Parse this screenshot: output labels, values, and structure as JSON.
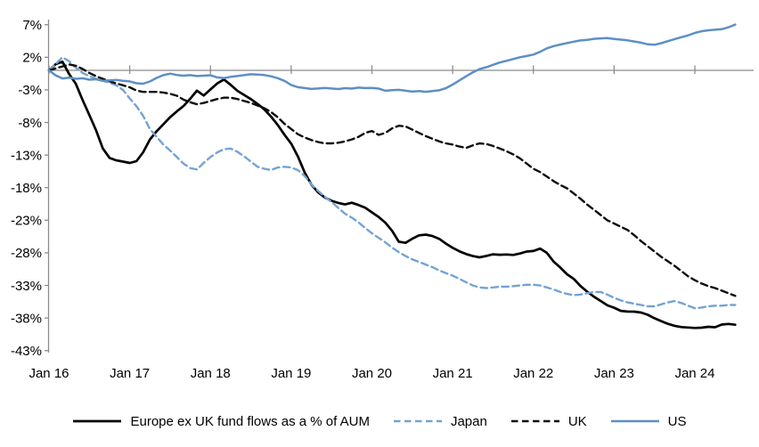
{
  "chart_data": {
    "type": "line",
    "title": "",
    "xlabel": "",
    "ylabel": "",
    "x_unit": "months since Jan 2016, monthly samples",
    "ylim": [
      -43,
      7
    ],
    "grid": false,
    "zero_axis_line": true,
    "legend_position": "bottom",
    "y_ticks": [
      {
        "value": 7,
        "label": "7%"
      },
      {
        "value": 2,
        "label": "2%"
      },
      {
        "value": -3,
        "label": "-3%"
      },
      {
        "value": -8,
        "label": "-8%"
      },
      {
        "value": -13,
        "label": "-13%"
      },
      {
        "value": -18,
        "label": "-18%"
      },
      {
        "value": -23,
        "label": "-23%"
      },
      {
        "value": -28,
        "label": "-28%"
      },
      {
        "value": -33,
        "label": "-33%"
      },
      {
        "value": -38,
        "label": "-38%"
      },
      {
        "value": -43,
        "label": "-43%"
      }
    ],
    "x_ticks": [
      {
        "month": 0,
        "label": "Jan 16"
      },
      {
        "month": 12,
        "label": "Jan 17"
      },
      {
        "month": 24,
        "label": "Jan 18"
      },
      {
        "month": 36,
        "label": "Jan 19"
      },
      {
        "month": 48,
        "label": "Jan 20"
      },
      {
        "month": 60,
        "label": "Jan 21"
      },
      {
        "month": 72,
        "label": "Jan 22"
      },
      {
        "month": 84,
        "label": "Jan 23"
      },
      {
        "month": 96,
        "label": "Jan 24"
      }
    ],
    "axis_color": "#8c8c8c",
    "series": [
      {
        "name": "Europe ex UK fund flows as a % of AUM",
        "style": "solid",
        "color": "#000000",
        "width": 2.7,
        "values": [
          0.0,
          1.0,
          1.4,
          -0.5,
          -2.0,
          -4.5,
          -6.8,
          -9.2,
          -12.0,
          -13.5,
          -13.9,
          -14.1,
          -14.3,
          -14.0,
          -12.6,
          -10.6,
          -9.3,
          -8.2,
          -7.1,
          -6.2,
          -5.4,
          -4.3,
          -3.1,
          -3.9,
          -3.0,
          -2.1,
          -1.5,
          -2.3,
          -3.2,
          -3.8,
          -4.4,
          -5.1,
          -5.9,
          -7.0,
          -8.3,
          -9.8,
          -11.2,
          -13.2,
          -15.7,
          -17.6,
          -18.8,
          -19.6,
          -20.1,
          -20.4,
          -20.6,
          -20.3,
          -20.6,
          -21.0,
          -21.7,
          -22.4,
          -23.3,
          -24.6,
          -26.3,
          -26.5,
          -25.9,
          -25.4,
          -25.3,
          -25.5,
          -25.9,
          -26.6,
          -27.2,
          -27.7,
          -28.1,
          -28.4,
          -28.6,
          -28.4,
          -28.2,
          -28.3,
          -28.3,
          -28.4,
          -28.2,
          -27.9,
          -27.8,
          -27.4,
          -28.0,
          -29.3,
          -30.2,
          -31.2,
          -31.9,
          -33.0,
          -33.9,
          -34.7,
          -35.4,
          -36.1,
          -36.5,
          -37.0,
          -37.1,
          -37.1,
          -37.2,
          -37.5,
          -38.0,
          -38.4,
          -38.8,
          -39.1,
          -39.3,
          -39.4,
          -39.5,
          -39.5,
          -39.4,
          -39.5,
          -39.1,
          -39.0,
          -39.1
        ]
      },
      {
        "name": "Japan",
        "style": "dashed",
        "color": "#74A3D4",
        "width": 2.4,
        "values": [
          0.0,
          1.0,
          2.0,
          1.4,
          0.4,
          -0.4,
          -0.9,
          -1.3,
          -1.6,
          -1.9,
          -2.3,
          -3.0,
          -4.3,
          -5.5,
          -7.0,
          -9.0,
          -10.2,
          -11.4,
          -12.3,
          -13.3,
          -14.3,
          -15.0,
          -15.2,
          -14.2,
          -13.3,
          -12.6,
          -12.1,
          -12.0,
          -12.5,
          -13.2,
          -14.0,
          -14.8,
          -15.1,
          -15.3,
          -14.9,
          -14.8,
          -14.9,
          -15.3,
          -16.2,
          -17.5,
          -18.5,
          -19.4,
          -20.2,
          -21.1,
          -22.0,
          -22.6,
          -23.3,
          -24.2,
          -25.0,
          -25.7,
          -26.4,
          -27.2,
          -27.9,
          -28.5,
          -29.0,
          -29.4,
          -29.8,
          -30.2,
          -30.7,
          -31.1,
          -31.5,
          -32.0,
          -32.5,
          -33.0,
          -33.3,
          -33.4,
          -33.3,
          -33.2,
          -33.2,
          -33.1,
          -33.0,
          -32.9,
          -32.9,
          -33.0,
          -33.3,
          -33.6,
          -34.0,
          -34.3,
          -34.5,
          -34.4,
          -34.2,
          -34.0,
          -34.0,
          -34.4,
          -34.9,
          -35.3,
          -35.6,
          -35.8,
          -36.0,
          -36.2,
          -36.2,
          -35.9,
          -35.6,
          -35.4,
          -35.7,
          -36.1,
          -36.5,
          -36.4,
          -36.2,
          -36.1,
          -36.1,
          -36.0,
          -36.0
        ]
      },
      {
        "name": "UK",
        "style": "dashed",
        "color": "#0d0d0d",
        "width": 2.4,
        "values": [
          0.0,
          0.3,
          0.6,
          0.9,
          0.7,
          0.2,
          -0.4,
          -0.9,
          -1.3,
          -1.7,
          -2.0,
          -2.3,
          -2.6,
          -3.1,
          -3.3,
          -3.3,
          -3.3,
          -3.4,
          -3.6,
          -3.9,
          -4.5,
          -4.9,
          -5.2,
          -5.0,
          -4.7,
          -4.4,
          -4.2,
          -4.2,
          -4.4,
          -4.7,
          -5.0,
          -5.4,
          -5.8,
          -6.4,
          -7.2,
          -8.2,
          -9.0,
          -9.8,
          -10.3,
          -10.7,
          -11.0,
          -11.2,
          -11.2,
          -11.1,
          -10.9,
          -10.6,
          -10.2,
          -9.6,
          -9.3,
          -9.9,
          -9.6,
          -8.9,
          -8.5,
          -8.6,
          -9.1,
          -9.6,
          -10.1,
          -10.5,
          -10.9,
          -11.2,
          -11.4,
          -11.7,
          -11.9,
          -11.5,
          -11.2,
          -11.3,
          -11.6,
          -12.0,
          -12.4,
          -12.9,
          -13.5,
          -14.3,
          -15.1,
          -15.6,
          -16.3,
          -17.0,
          -17.6,
          -18.1,
          -18.9,
          -19.7,
          -20.6,
          -21.4,
          -22.2,
          -23.0,
          -23.5,
          -24.0,
          -24.5,
          -25.3,
          -26.2,
          -27.0,
          -27.8,
          -28.6,
          -29.3,
          -30.0,
          -30.8,
          -31.6,
          -32.2,
          -32.7,
          -33.1,
          -33.4,
          -33.8,
          -34.2,
          -34.6
        ]
      },
      {
        "name": "US",
        "style": "solid",
        "color": "#5E8FC4",
        "width": 2.5,
        "values": [
          0.0,
          -0.8,
          -1.3,
          -1.2,
          -1.4,
          -1.3,
          -1.5,
          -1.4,
          -1.6,
          -1.5,
          -1.4,
          -1.5,
          -1.6,
          -1.9,
          -2.0,
          -1.7,
          -1.2,
          -0.8,
          -0.6,
          -0.8,
          -0.9,
          -0.8,
          -0.9,
          -0.8,
          -0.7,
          -1.0,
          -1.1,
          -0.9,
          -0.8,
          -0.7,
          -0.6,
          -0.7,
          -0.8,
          -1.0,
          -1.3,
          -1.7,
          -2.3,
          -2.6,
          -2.7,
          -2.8,
          -2.7,
          -2.6,
          -2.7,
          -2.8,
          -2.7,
          -2.8,
          -2.7,
          -2.8,
          -2.8,
          -2.9,
          -3.2,
          -3.1,
          -3.0,
          -3.1,
          -3.2,
          -3.1,
          -3.2,
          -3.1,
          -3.0,
          -2.7,
          -2.2,
          -1.6,
          -1.0,
          -0.4,
          0.1,
          0.4,
          0.8,
          1.2,
          1.5,
          1.8,
          2.1,
          2.3,
          2.5,
          2.9,
          3.4,
          3.7,
          3.9,
          4.1,
          4.3,
          4.5,
          4.6,
          4.8,
          4.9,
          5.0,
          4.9,
          4.8,
          4.7,
          4.5,
          4.3,
          4.0,
          3.9,
          4.1,
          4.4,
          4.7,
          5.0,
          5.3,
          5.7,
          6.0,
          6.2,
          6.3,
          6.4,
          6.7,
          7.1
        ]
      }
    ]
  },
  "legend": {
    "items": [
      {
        "label": "Europe ex UK fund flows as a % of AUM"
      },
      {
        "label": "Japan"
      },
      {
        "label": "UK"
      },
      {
        "label": "US"
      }
    ]
  }
}
